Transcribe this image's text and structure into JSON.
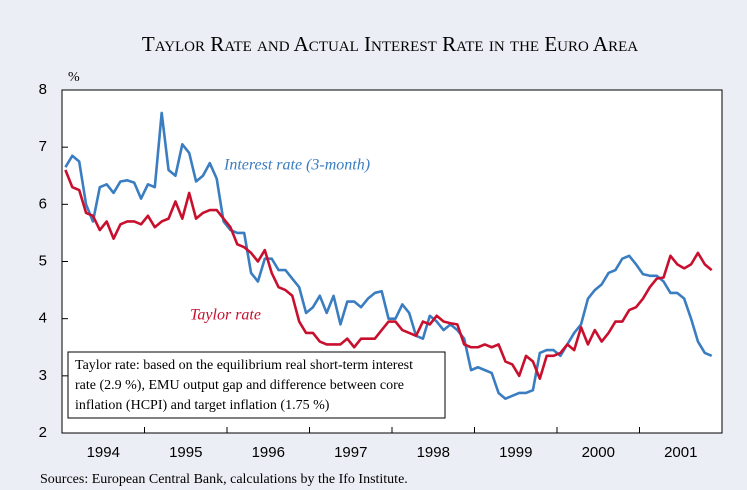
{
  "chart_data": {
    "type": "line",
    "title": "Taylor Rate and Actual Interest Rate in the Euro Area",
    "y_unit": "%",
    "categories": [
      "1994",
      null,
      null,
      null,
      null,
      null,
      null,
      null,
      null,
      null,
      null,
      null,
      "1995",
      null,
      null,
      null,
      null,
      null,
      null,
      null,
      null,
      null,
      null,
      null,
      "1996",
      null,
      null,
      null,
      null,
      null,
      null,
      null,
      null,
      null,
      null,
      null,
      "1997",
      null,
      null,
      null,
      null,
      null,
      null,
      null,
      null,
      null,
      null,
      null,
      "1998",
      null,
      null,
      null,
      null,
      null,
      null,
      null,
      null,
      null,
      null,
      null,
      "1999",
      null,
      null,
      null,
      null,
      null,
      null,
      null,
      null,
      null,
      null,
      null,
      "2000",
      null,
      null,
      null,
      null,
      null,
      null,
      null,
      null,
      null,
      null,
      null,
      "2001",
      null,
      null,
      null,
      null,
      null,
      null,
      null,
      null,
      null,
      null,
      null
    ],
    "series": [
      {
        "name": "Interest rate (3-month)",
        "color": "#3a7dc0",
        "values": [
          6.65,
          6.85,
          6.75,
          6.0,
          5.7,
          6.3,
          6.35,
          6.2,
          6.4,
          6.42,
          6.38,
          6.1,
          6.35,
          6.3,
          7.6,
          6.6,
          6.5,
          7.05,
          6.9,
          6.4,
          6.5,
          6.72,
          6.45,
          5.7,
          5.55,
          5.5,
          5.5,
          4.8,
          4.65,
          5.05,
          5.05,
          4.85,
          4.85,
          4.7,
          4.55,
          4.1,
          4.2,
          4.4,
          4.1,
          4.4,
          3.9,
          4.3,
          4.3,
          4.2,
          4.35,
          4.45,
          4.48,
          4.0,
          4.0,
          4.25,
          4.1,
          3.7,
          3.65,
          4.05,
          3.95,
          3.8,
          3.9,
          3.8,
          3.65,
          3.1,
          3.15,
          3.1,
          3.05,
          2.7,
          2.6,
          2.65,
          2.7,
          2.7,
          2.75,
          3.4,
          3.45,
          3.45,
          3.35,
          3.55,
          3.75,
          3.9,
          4.35,
          4.5,
          4.6,
          4.8,
          4.85,
          5.05,
          5.1,
          4.95,
          4.78,
          4.75,
          4.75,
          4.65,
          4.45,
          4.45,
          4.35,
          4.0,
          3.6,
          3.4,
          3.35,
          null
        ]
      },
      {
        "name": "Taylor rate",
        "color": "#c8102e",
        "values": [
          6.6,
          6.3,
          6.25,
          5.85,
          5.8,
          5.55,
          5.7,
          5.4,
          5.65,
          5.7,
          5.7,
          5.65,
          5.8,
          5.6,
          5.7,
          5.75,
          6.05,
          5.75,
          6.2,
          5.75,
          5.85,
          5.9,
          5.9,
          5.75,
          5.6,
          5.3,
          5.25,
          5.15,
          5.0,
          5.2,
          4.8,
          4.55,
          4.5,
          4.4,
          3.95,
          3.75,
          3.75,
          3.6,
          3.55,
          3.55,
          3.55,
          3.65,
          3.5,
          3.65,
          3.65,
          3.65,
          3.8,
          3.95,
          3.95,
          3.8,
          3.75,
          3.7,
          3.95,
          3.9,
          4.05,
          3.95,
          3.92,
          3.9,
          3.55,
          3.5,
          3.5,
          3.55,
          3.5,
          3.55,
          3.25,
          3.2,
          3.0,
          3.35,
          3.25,
          2.95,
          3.35,
          3.35,
          3.4,
          3.55,
          3.45,
          3.85,
          3.55,
          3.8,
          3.6,
          3.75,
          3.95,
          3.95,
          4.15,
          4.2,
          4.35,
          4.55,
          4.7,
          4.72,
          5.1,
          4.95,
          4.88,
          4.95,
          5.15,
          4.95,
          4.85,
          null
        ]
      }
    ],
    "ylim": [
      2,
      8
    ],
    "yticks": [
      2,
      3,
      4,
      5,
      6,
      7,
      8
    ],
    "note": [
      "Taylor rate: based on the equilibrium real short-term interest",
      "rate (2.9 %), EMU output gap and difference between core",
      "inflation (HCPI) and target inflation (1.75 %)"
    ],
    "source": "Sources: European Central Bank, calculations by the Ifo Institute."
  }
}
